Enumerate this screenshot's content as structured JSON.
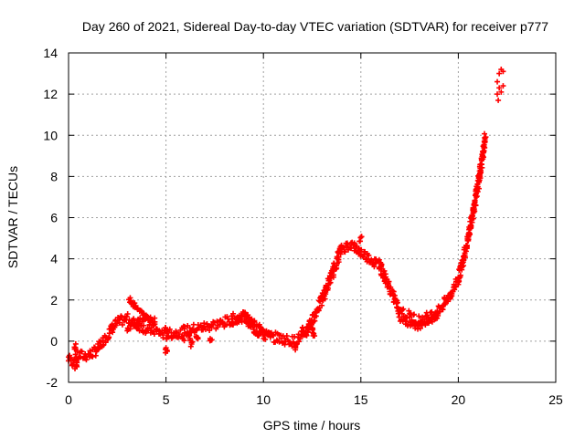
{
  "chart_data": {
    "type": "scatter",
    "title": "Day 260 of 2021, Sidereal Day-to-day VTEC variation (SDTVAR) for receiver p777",
    "xlabel": "GPS time / hours",
    "ylabel": "SDTVAR / TECUs",
    "xlim": [
      0,
      25
    ],
    "ylim": [
      -2,
      14
    ],
    "xticks": [
      0,
      5,
      10,
      15,
      20,
      25
    ],
    "yticks": [
      -2,
      0,
      2,
      4,
      6,
      8,
      10,
      12,
      14
    ],
    "grid": true,
    "marker": "+",
    "series": [
      {
        "name": "SDTVAR",
        "color": "#ff0000",
        "trend": [
          [
            0.0,
            -0.8
          ],
          [
            0.2,
            -1.0
          ],
          [
            0.5,
            -0.7
          ],
          [
            1.0,
            -0.7
          ],
          [
            1.5,
            -0.4
          ],
          [
            2.0,
            0.3
          ],
          [
            2.5,
            0.9
          ],
          [
            3.0,
            1.1
          ],
          [
            3.5,
            0.8
          ],
          [
            4.0,
            0.6
          ],
          [
            4.5,
            0.5
          ],
          [
            5.0,
            0.3
          ],
          [
            5.5,
            0.4
          ],
          [
            6.0,
            0.5
          ],
          [
            6.5,
            0.6
          ],
          [
            7.0,
            0.7
          ],
          [
            7.5,
            0.8
          ],
          [
            8.0,
            0.9
          ],
          [
            8.5,
            1.1
          ],
          [
            9.0,
            1.2
          ],
          [
            9.5,
            0.6
          ],
          [
            10.0,
            0.3
          ],
          [
            10.5,
            0.2
          ],
          [
            11.0,
            0.1
          ],
          [
            11.5,
            0.0
          ],
          [
            12.0,
            0.2
          ],
          [
            12.5,
            1.0
          ],
          [
            13.0,
            2.0
          ],
          [
            13.5,
            3.2
          ],
          [
            14.0,
            4.5
          ],
          [
            14.5,
            4.7
          ],
          [
            15.0,
            4.3
          ],
          [
            15.5,
            4.0
          ],
          [
            16.0,
            3.6
          ],
          [
            16.5,
            2.5
          ],
          [
            17.0,
            1.5
          ],
          [
            17.5,
            1.2
          ],
          [
            18.0,
            1.0
          ],
          [
            18.5,
            1.2
          ],
          [
            19.0,
            1.5
          ],
          [
            19.5,
            2.1
          ],
          [
            20.0,
            3.0
          ],
          [
            20.5,
            5.0
          ],
          [
            21.0,
            7.5
          ],
          [
            21.4,
            10.0
          ]
        ],
        "branches": [
          [
            [
              3.1,
              2.1
            ],
            [
              3.5,
              1.6
            ],
            [
              4.0,
              1.1
            ],
            [
              4.5,
              0.8
            ]
          ],
          [
            [
              3.0,
              0.6
            ],
            [
              3.5,
              0.9
            ],
            [
              4.0,
              1.2
            ],
            [
              4.5,
              1.0
            ]
          ],
          [
            [
              8.6,
              0.9
            ],
            [
              9.0,
              1.4
            ],
            [
              9.5,
              0.9
            ],
            [
              10.0,
              0.5
            ],
            [
              10.5,
              0.2
            ]
          ],
          [
            [
              12.2,
              0.3
            ],
            [
              12.4,
              1.0
            ],
            [
              12.6,
              0.2
            ]
          ],
          [
            [
              17.0,
              1.1
            ],
            [
              17.5,
              0.8
            ],
            [
              18.0,
              0.7
            ],
            [
              18.5,
              0.9
            ],
            [
              19.0,
              1.3
            ]
          ]
        ],
        "clusters": [
          [
            5.0,
            -0.5
          ],
          [
            5.0,
            0.5
          ],
          [
            5.9,
            0.1
          ],
          [
            6.2,
            0.3
          ],
          [
            6.6,
            0.2
          ],
          [
            6.3,
            -0.1
          ],
          [
            7.3,
            0.0
          ],
          [
            8.4,
            0.9
          ],
          [
            11.7,
            -0.3
          ],
          [
            12.0,
            0.5
          ],
          [
            0.3,
            -0.3
          ],
          [
            0.4,
            -1.2
          ],
          [
            16.0,
            3.8
          ],
          [
            15.0,
            5.0
          ]
        ],
        "end_points": [
          [
            22.0,
            12.6
          ],
          [
            22.1,
            13.0
          ],
          [
            22.2,
            13.2
          ],
          [
            22.3,
            13.1
          ],
          [
            22.0,
            12.0
          ],
          [
            22.1,
            12.3
          ],
          [
            22.2,
            12.1
          ],
          [
            22.3,
            12.4
          ],
          [
            22.05,
            11.7
          ]
        ]
      }
    ]
  }
}
